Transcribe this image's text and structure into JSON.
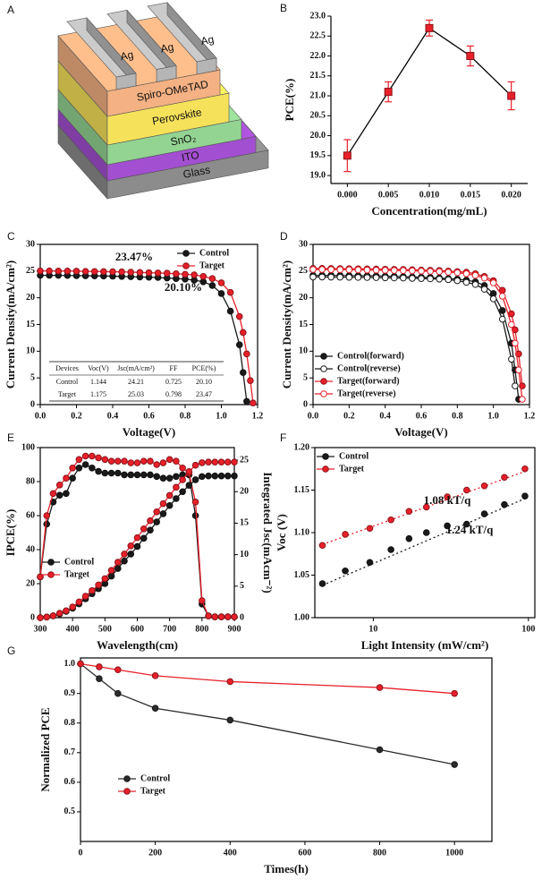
{
  "diagram": {
    "panel_label": "A",
    "electrode": [
      "Ag",
      "Ag",
      "Ag"
    ],
    "layers": [
      {
        "label": "Glass",
        "color": "#8c8c8c"
      },
      {
        "label": "ITO",
        "color": "#a34fd1"
      },
      {
        "label": "SnO₂",
        "color": "#93d493"
      },
      {
        "label": "Perovskite",
        "color": "#f6e25a"
      },
      {
        "label": "Spiro-OMeTAD",
        "color": "#f4b183"
      }
    ],
    "electrode_color": "#b5b5b5"
  },
  "chart_data": [
    {
      "type": "line",
      "panel_label": "B",
      "x_label": "Concentration(mg/mL)",
      "y_label": "PCE(%)",
      "box": false,
      "x": [
        0,
        0.005,
        0.01,
        0.015,
        0.02
      ],
      "xlim": [
        -0.002,
        0.022
      ],
      "xticks": [
        {
          "value": 0,
          "label": "0.000"
        },
        {
          "value": 0.005,
          "label": "0.005"
        },
        {
          "value": 0.01,
          "label": "0.010"
        },
        {
          "value": 0.015,
          "label": "0.015"
        },
        {
          "value": 0.02,
          "label": "0.020"
        }
      ],
      "ylim": [
        18.8,
        23.0
      ],
      "yticks": [
        {
          "value": 19,
          "label": "19.0"
        },
        {
          "value": 19.5,
          "label": "19.5"
        },
        {
          "value": 20,
          "label": "20.0"
        },
        {
          "value": 20.5,
          "label": "20.5"
        },
        {
          "value": 21,
          "label": "21.0"
        },
        {
          "value": 21.5,
          "label": "21.5"
        },
        {
          "value": 22,
          "label": "22.0"
        },
        {
          "value": 22.5,
          "label": "22.5"
        },
        {
          "value": 23,
          "label": "23.0"
        }
      ],
      "series": [
        {
          "color": "#e8202a",
          "line_color": "#000000",
          "marker": "square",
          "filled": true,
          "values": [
            19.5,
            21.1,
            22.7,
            22.0,
            21.0
          ],
          "errors": [
            0.4,
            0.25,
            0.2,
            0.25,
            0.35
          ]
        }
      ]
    },
    {
      "type": "line",
      "panel_label": "C",
      "x_label": "Voltage(V)",
      "y_label": "Current Density(mA/cm²)",
      "box": true,
      "legend": "upper right",
      "x": [
        0,
        0.05,
        0.1,
        0.15,
        0.2,
        0.25,
        0.3,
        0.35,
        0.4,
        0.45,
        0.5,
        0.55,
        0.6,
        0.65,
        0.7,
        0.75,
        0.8,
        0.85,
        0.9,
        0.95,
        1.0,
        1.05,
        1.1,
        1.12,
        1.14,
        1.16,
        1.175
      ],
      "xlim": [
        0,
        1.2
      ],
      "xticks": [
        {
          "value": 0,
          "label": "0.0"
        },
        {
          "value": 0.2,
          "label": "0.2"
        },
        {
          "value": 0.4,
          "label": "0.4"
        },
        {
          "value": 0.6,
          "label": "0.6"
        },
        {
          "value": 0.8,
          "label": "0.8"
        },
        {
          "value": 1.0,
          "label": "1.0"
        },
        {
          "value": 1.2,
          "label": "1.2"
        }
      ],
      "ylim": [
        0,
        30
      ],
      "yticks": [
        0,
        5,
        10,
        15,
        20,
        25,
        30
      ],
      "series": [
        {
          "name": "Control",
          "color": "#1a1a1a",
          "marker": "circle",
          "filled": true,
          "values": [
            24.21,
            24.2,
            24.2,
            24.18,
            24.15,
            24.12,
            24.1,
            24.08,
            24.05,
            24.0,
            23.95,
            23.9,
            23.85,
            23.8,
            23.7,
            23.6,
            23.5,
            23.3,
            23.0,
            22.3,
            20.8,
            17.5,
            11.2,
            6.0,
            0.6,
            null,
            null
          ]
        },
        {
          "name": "Target",
          "color": "#e8202a",
          "marker": "circle",
          "filled": true,
          "values": [
            25.03,
            25.02,
            25.0,
            25.0,
            24.98,
            24.95,
            24.93,
            24.9,
            24.88,
            24.85,
            24.8,
            24.75,
            24.7,
            24.65,
            24.6,
            24.5,
            24.4,
            24.3,
            24.0,
            23.6,
            22.8,
            21.0,
            16.5,
            13.5,
            9.5,
            4.5,
            0.3
          ]
        }
      ],
      "annotations": [
        {
          "text": "23.47%",
          "color": "#e8202a"
        },
        {
          "text": "20.10%",
          "color": "#1a1a1a"
        }
      ],
      "table": {
        "header": [
          "Devices",
          "Voc(V)",
          "Jsc(mA/cm²)",
          "FF",
          "PCE(%)"
        ],
        "rows": [
          [
            "Control",
            "1.144",
            "24.21",
            "0.725",
            "20.10"
          ],
          [
            "Target",
            "1.175",
            "25.03",
            "0.798",
            "23.47"
          ]
        ]
      }
    },
    {
      "type": "line",
      "panel_label": "D",
      "x_label": "Voltage(V)",
      "y_label": "Current Density(mA/cm²)",
      "box": true,
      "legend": "lower left",
      "x": [
        0,
        0.05,
        0.1,
        0.15,
        0.2,
        0.25,
        0.3,
        0.35,
        0.4,
        0.45,
        0.5,
        0.55,
        0.6,
        0.65,
        0.7,
        0.75,
        0.8,
        0.85,
        0.9,
        0.95,
        1.0,
        1.05,
        1.1,
        1.12,
        1.14,
        1.16,
        1.175
      ],
      "xlim": [
        0,
        1.2
      ],
      "xticks": [
        {
          "value": 0,
          "label": "0.0"
        },
        {
          "value": 0.2,
          "label": "0.2"
        },
        {
          "value": 0.4,
          "label": "0.4"
        },
        {
          "value": 0.6,
          "label": "0.6"
        },
        {
          "value": 0.8,
          "label": "0.8"
        },
        {
          "value": 1.0,
          "label": "1.0"
        },
        {
          "value": 1.2,
          "label": "1.2"
        }
      ],
      "ylim": [
        0,
        30
      ],
      "yticks": [
        0,
        5,
        10,
        15,
        20,
        25,
        30
      ],
      "series": [
        {
          "name": "Control(forward)",
          "color": "#1a1a1a",
          "marker": "circle",
          "filled": true,
          "values": [
            24.2,
            24.2,
            24.2,
            24.18,
            24.15,
            24.12,
            24.1,
            24.08,
            24.05,
            24.0,
            23.95,
            23.9,
            23.85,
            23.8,
            23.7,
            23.6,
            23.5,
            23.3,
            23.0,
            22.3,
            20.8,
            17.6,
            11.5,
            6.5,
            1.0,
            null,
            null
          ]
        },
        {
          "name": "Control(reverse)",
          "color": "#1a1a1a",
          "marker": "circle",
          "filled": false,
          "values": [
            23.9,
            23.9,
            23.88,
            23.86,
            23.84,
            23.82,
            23.8,
            23.78,
            23.75,
            23.72,
            23.7,
            23.65,
            23.6,
            23.55,
            23.5,
            23.4,
            23.2,
            22.9,
            22.5,
            21.6,
            19.8,
            16.0,
            8.5,
            3.5,
            null,
            null,
            null
          ]
        },
        {
          "name": "Target(forward)",
          "color": "#e8202a",
          "marker": "circle",
          "filled": true,
          "values": [
            25.5,
            25.5,
            25.48,
            25.47,
            25.45,
            25.43,
            25.4,
            25.38,
            25.35,
            25.32,
            25.3,
            25.25,
            25.2,
            25.15,
            25.1,
            25.0,
            24.9,
            24.8,
            24.5,
            24.0,
            23.2,
            21.4,
            17.0,
            14.0,
            9.5,
            3.5,
            null
          ]
        },
        {
          "name": "Target(reverse)",
          "color": "#e8202a",
          "marker": "circle",
          "filled": false,
          "values": [
            25.3,
            25.3,
            25.28,
            25.27,
            25.25,
            25.23,
            25.2,
            25.18,
            25.15,
            25.12,
            25.1,
            25.05,
            25.0,
            24.95,
            24.9,
            24.8,
            24.7,
            24.5,
            24.2,
            23.7,
            22.8,
            20.3,
            15.0,
            11.5,
            6.5,
            1.0,
            null
          ]
        }
      ]
    },
    {
      "type": "line",
      "panel_label": "E",
      "x_label": "Wavelength(cm)",
      "y_label": "IPCE(%)",
      "y2_label": "Integrated Jsc(mAcm⁻²)",
      "box": true,
      "legend": "center left",
      "x": [
        300,
        320,
        340,
        360,
        380,
        400,
        420,
        440,
        460,
        480,
        500,
        520,
        540,
        560,
        580,
        600,
        620,
        640,
        660,
        680,
        700,
        720,
        740,
        760,
        780,
        800,
        820,
        840,
        860,
        880,
        900
      ],
      "xlim": [
        300,
        900
      ],
      "xticks": [
        300,
        400,
        500,
        600,
        700,
        800,
        900
      ],
      "ylim": [
        0,
        100
      ],
      "yticks": [
        0,
        20,
        40,
        60,
        80,
        100
      ],
      "y2lim": [
        0,
        27
      ],
      "y2ticks": [
        0,
        5,
        10,
        15,
        20,
        25
      ],
      "series": [
        {
          "name": "Control",
          "color": "#1a1a1a",
          "marker": "circle",
          "filled": true,
          "values": [
            24,
            55,
            68,
            72,
            73,
            82,
            88,
            90,
            88,
            86,
            85,
            85,
            85,
            84,
            84,
            84,
            84,
            84,
            83,
            82,
            82,
            83,
            84,
            84,
            60,
            8,
            1,
            0.5,
            0.5,
            0.5,
            0.5
          ]
        },
        {
          "name": "Target",
          "color": "#e8202a",
          "marker": "circle",
          "filled": true,
          "values": [
            24,
            60,
            73,
            78,
            82,
            88,
            93,
            95,
            95,
            94,
            93,
            92,
            92,
            92,
            91,
            91,
            92,
            92,
            90,
            91,
            93,
            92,
            88,
            85,
            68,
            10,
            1,
            0.5,
            0.5,
            0.5,
            0.5
          ]
        },
        {
          "color": "#1a1a1a",
          "marker": "circle",
          "filled": true,
          "axis": "y2",
          "values": [
            0,
            0.1,
            0.3,
            0.6,
            1.0,
            1.5,
            2.2,
            3.0,
            3.8,
            4.6,
            5.4,
            6.6,
            7.8,
            9.0,
            10.1,
            11.3,
            12.6,
            13.9,
            15.2,
            16.5,
            17.8,
            18.9,
            20.0,
            21.0,
            21.9,
            22.4,
            22.5,
            22.5,
            22.5,
            22.5,
            22.5
          ]
        },
        {
          "color": "#e8202a",
          "marker": "circle",
          "filled": true,
          "axis": "y2",
          "values": [
            0,
            0.1,
            0.3,
            0.7,
            1.1,
            1.7,
            2.5,
            3.4,
            4.3,
            5.2,
            6.2,
            7.5,
            8.8,
            10.1,
            11.4,
            12.7,
            14.1,
            15.4,
            16.8,
            18.1,
            19.4,
            20.7,
            21.9,
            23.2,
            24.2,
            24.6,
            24.7,
            24.7,
            24.7,
            24.7,
            24.7
          ]
        }
      ]
    },
    {
      "type": "scatter",
      "panel_label": "F",
      "x_label": "Light Intensity (mW/cm²)",
      "y_label": "Voc (V)",
      "box": true,
      "legend": "upper left",
      "xlog": true,
      "x": [
        4.7,
        6.6,
        9.5,
        13,
        17,
        22,
        30,
        40,
        52,
        70,
        95
      ],
      "xlim": [
        4.2,
        110
      ],
      "xticks": [
        10,
        100
      ],
      "ylim": [
        1.0,
        1.2
      ],
      "yticks": [
        {
          "value": 1.0,
          "label": "1.00"
        },
        {
          "value": 1.05,
          "label": "1.05"
        },
        {
          "value": 1.1,
          "label": "1.10"
        },
        {
          "value": 1.15,
          "label": "1.15"
        },
        {
          "value": 1.2,
          "label": "1.20"
        }
      ],
      "series": [
        {
          "name": "Control",
          "color": "#1a1a1a",
          "marker": "circle",
          "filled": true,
          "values": [
            1.04,
            1.055,
            1.065,
            1.08,
            1.093,
            1.1,
            1.108,
            1.11,
            1.122,
            1.133,
            1.143
          ]
        },
        {
          "name": "Target",
          "color": "#e8202a",
          "marker": "circle",
          "filled": true,
          "values": [
            1.085,
            1.098,
            1.105,
            1.115,
            1.125,
            1.13,
            1.142,
            1.15,
            1.155,
            1.165,
            1.175
          ]
        }
      ],
      "fits": [
        {
          "color": "#1a1a1a",
          "x": [
            4.7,
            95
          ],
          "values": [
            1.038,
            1.14
          ]
        },
        {
          "color": "#e8202a",
          "x": [
            4.7,
            95
          ],
          "values": [
            1.086,
            1.172
          ]
        }
      ],
      "annotations": [
        {
          "text": "1.08 kT/q",
          "color": "#e8202a"
        },
        {
          "text": "1.24 kT/q",
          "color": "#1a1a1a"
        }
      ]
    },
    {
      "type": "line",
      "panel_label": "G",
      "x_label": "Times(h)",
      "y_label": "Normalized PCE",
      "box": true,
      "legend": "lower left",
      "x": [
        0,
        50,
        100,
        200,
        400,
        800,
        1000
      ],
      "xlim": [
        0,
        1100
      ],
      "xticks": [
        0,
        200,
        400,
        600,
        800,
        1000
      ],
      "ylim": [
        0.4,
        1.02
      ],
      "yticks": [
        {
          "value": 0.5,
          "label": "0.5"
        },
        {
          "value": 0.6,
          "label": "0.6"
        },
        {
          "value": 0.7,
          "label": "0.7"
        },
        {
          "value": 0.8,
          "label": "0.8"
        },
        {
          "value": 0.9,
          "label": "0.9"
        },
        {
          "value": 1.0,
          "label": "1.0"
        }
      ],
      "series": [
        {
          "name": "Control",
          "color": "#2b2b2b",
          "marker": "circle",
          "filled": true,
          "values": [
            1.0,
            0.95,
            0.9,
            0.85,
            0.81,
            0.71,
            0.66
          ]
        },
        {
          "name": "Target",
          "color": "#e8202a",
          "marker": "circle",
          "filled": true,
          "values": [
            1.0,
            0.99,
            0.98,
            0.96,
            0.94,
            0.92,
            0.9
          ]
        }
      ]
    }
  ]
}
